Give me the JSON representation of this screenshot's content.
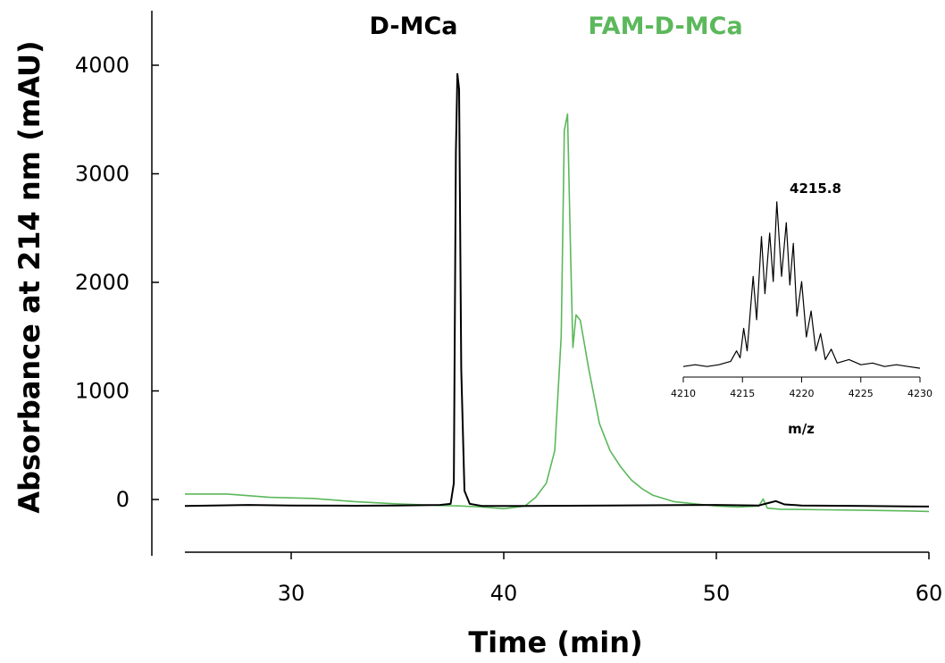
{
  "chart_data": [
    {
      "type": "line",
      "xlabel": "Time (min)",
      "ylabel": "Absorbance at 214 nm (mAU)",
      "xlim": [
        25,
        60
      ],
      "ylim": [
        -500,
        4500
      ],
      "x_ticks": [
        "30",
        "40",
        "50",
        "60"
      ],
      "y_ticks": [
        "0",
        "1000",
        "2000",
        "3000",
        "4000"
      ],
      "grid": false,
      "legend": "none",
      "series_labels": [
        {
          "text": "D-MCa",
          "color": "#000000"
        },
        {
          "text": "FAM-D-MCa",
          "color": "#5cb85c"
        }
      ],
      "series": [
        {
          "color": "#000000",
          "points": [
            [
              25,
              -60
            ],
            [
              28,
              -50
            ],
            [
              30,
              -55
            ],
            [
              33,
              -58
            ],
            [
              35,
              -55
            ],
            [
              37,
              -50
            ],
            [
              37.5,
              -40
            ],
            [
              37.65,
              150
            ],
            [
              37.75,
              3200
            ],
            [
              37.82,
              3920
            ],
            [
              37.9,
              3780
            ],
            [
              38,
              1200
            ],
            [
              38.15,
              80
            ],
            [
              38.4,
              -40
            ],
            [
              39,
              -60
            ],
            [
              41,
              -60
            ],
            [
              45,
              -55
            ],
            [
              50,
              -50
            ],
            [
              52,
              -55
            ],
            [
              52.5,
              -30
            ],
            [
              52.8,
              -15
            ],
            [
              53.2,
              -45
            ],
            [
              54,
              -55
            ],
            [
              57,
              -60
            ],
            [
              60,
              -65
            ]
          ]
        },
        {
          "color": "#5cb85c",
          "points": [
            [
              25,
              50
            ],
            [
              27,
              50
            ],
            [
              29,
              20
            ],
            [
              31,
              10
            ],
            [
              33,
              -20
            ],
            [
              35,
              -40
            ],
            [
              37,
              -55
            ],
            [
              38,
              -60
            ],
            [
              39,
              -70
            ],
            [
              40,
              -85
            ],
            [
              41,
              -60
            ],
            [
              41.5,
              20
            ],
            [
              42,
              150
            ],
            [
              42.4,
              450
            ],
            [
              42.7,
              1500
            ],
            [
              42.85,
              3400
            ],
            [
              43,
              3550
            ],
            [
              43.15,
              2200
            ],
            [
              43.25,
              1400
            ],
            [
              43.4,
              1700
            ],
            [
              43.6,
              1650
            ],
            [
              44,
              1200
            ],
            [
              44.5,
              700
            ],
            [
              45,
              450
            ],
            [
              45.5,
              300
            ],
            [
              46,
              180
            ],
            [
              46.5,
              100
            ],
            [
              47,
              40
            ],
            [
              48,
              -20
            ],
            [
              49,
              -40
            ],
            [
              50,
              -60
            ],
            [
              51,
              -70
            ],
            [
              52,
              -60
            ],
            [
              52.2,
              5
            ],
            [
              52.4,
              -80
            ],
            [
              53,
              -90
            ],
            [
              55,
              -95
            ],
            [
              57,
              -100
            ],
            [
              59,
              -105
            ],
            [
              60,
              -110
            ]
          ]
        }
      ]
    },
    {
      "type": "line",
      "title": "m/z",
      "xlim": [
        4210,
        4230
      ],
      "x_ticks": [
        "4210",
        "4215",
        "4220",
        "4225",
        "4230"
      ],
      "annotation": "4215.8",
      "ylim": [
        0,
        1
      ],
      "series": [
        {
          "color": "#000000",
          "points": [
            [
              4210,
              0.03
            ],
            [
              4211,
              0.04
            ],
            [
              4212,
              0.03
            ],
            [
              4213,
              0.04
            ],
            [
              4214,
              0.06
            ],
            [
              4214.5,
              0.12
            ],
            [
              4214.8,
              0.08
            ],
            [
              4215.1,
              0.25
            ],
            [
              4215.4,
              0.12
            ],
            [
              4215.9,
              0.55
            ],
            [
              4216.2,
              0.3
            ],
            [
              4216.6,
              0.78
            ],
            [
              4216.9,
              0.45
            ],
            [
              4217.3,
              0.8
            ],
            [
              4217.6,
              0.52
            ],
            [
              4217.9,
              0.98
            ],
            [
              4218.3,
              0.55
            ],
            [
              4218.7,
              0.86
            ],
            [
              4219.0,
              0.5
            ],
            [
              4219.3,
              0.74
            ],
            [
              4219.6,
              0.32
            ],
            [
              4220.0,
              0.52
            ],
            [
              4220.4,
              0.2
            ],
            [
              4220.8,
              0.35
            ],
            [
              4221.2,
              0.12
            ],
            [
              4221.6,
              0.22
            ],
            [
              4222.0,
              0.07
            ],
            [
              4222.5,
              0.13
            ],
            [
              4223,
              0.05
            ],
            [
              4224,
              0.07
            ],
            [
              4225,
              0.04
            ],
            [
              4226,
              0.05
            ],
            [
              4227,
              0.03
            ],
            [
              4228,
              0.04
            ],
            [
              4229,
              0.03
            ],
            [
              4230,
              0.02
            ]
          ]
        }
      ]
    }
  ]
}
